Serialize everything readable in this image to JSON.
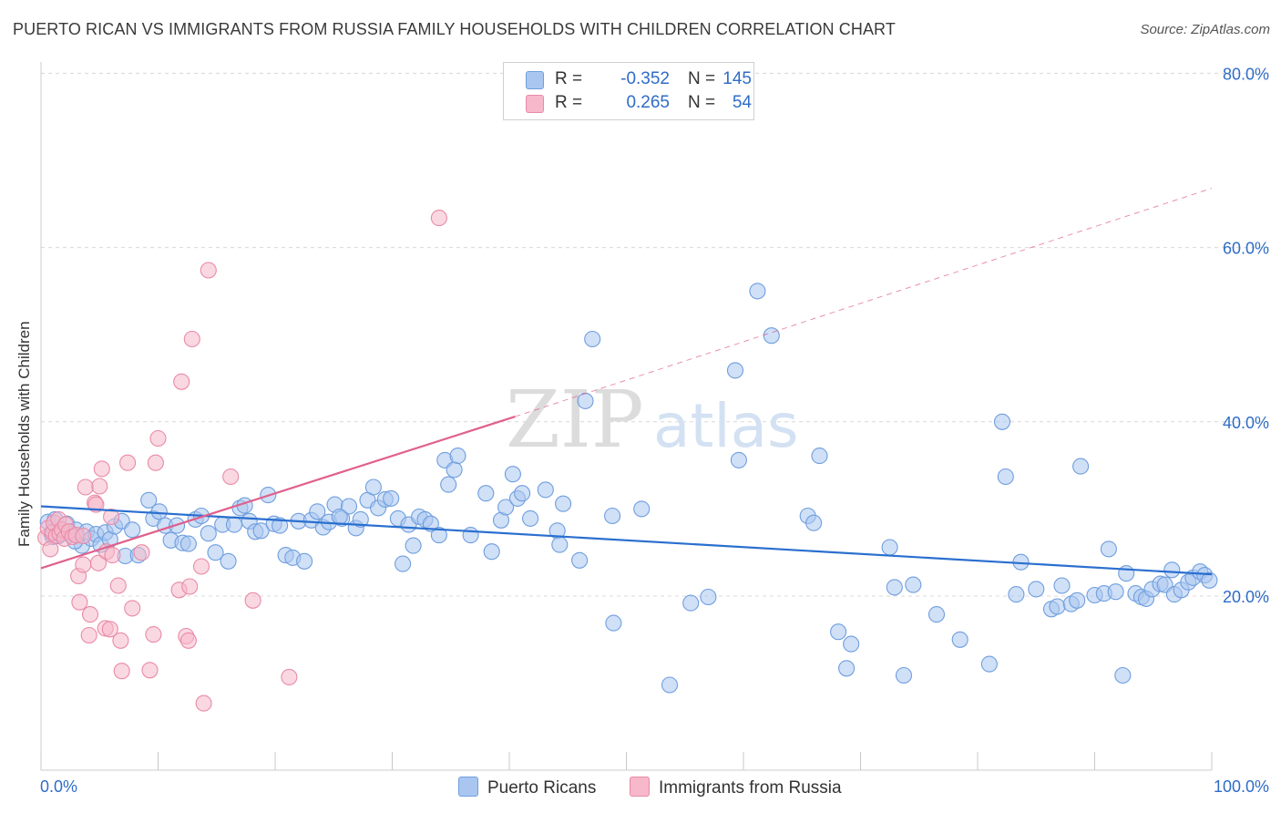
{
  "header": {
    "title": "PUERTO RICAN VS IMMIGRANTS FROM RUSSIA FAMILY HOUSEHOLDS WITH CHILDREN CORRELATION CHART",
    "source": "Source: ZipAtlas.com"
  },
  "legend": {
    "rows": [
      {
        "r_label": "R =",
        "r_value": "-0.352",
        "n_label": "N =",
        "n_value": "145"
      },
      {
        "r_label": "R =",
        "r_value": "0.265",
        "n_label": "N =",
        "n_value": "54"
      }
    ],
    "series": [
      "Puerto Ricans",
      "Immigrants from Russia"
    ]
  },
  "colors": {
    "blue_fill": "#a9c6f0",
    "blue_stroke": "#6f9ede",
    "blue_line": "#2a6fcf",
    "pink_fill": "#f6b8ca",
    "pink_stroke": "#e98aa7",
    "pink_line": "#e0608c",
    "axis_text": "#2f6cc7",
    "grid": "#d8d8d8"
  },
  "chart_data": {
    "type": "scatter",
    "title": "PUERTO RICAN VS IMMIGRANTS FROM RUSSIA FAMILY HOUSEHOLDS WITH CHILDREN CORRELATION CHART",
    "xlabel": "",
    "ylabel": "Family Households with Children",
    "xlim": [
      0,
      100
    ],
    "ylim": [
      0,
      82
    ],
    "x_tick_labels": [
      "0.0%",
      "100.0%"
    ],
    "y_ticks": [
      20,
      40,
      60,
      80
    ],
    "y_tick_labels": [
      "20.0%",
      "40.0%",
      "60.0%",
      "80.0%"
    ],
    "grid": true,
    "watermark": "ZIPatlas",
    "series": [
      {
        "name": "Puerto Ricans",
        "r": -0.352,
        "n": 145,
        "trend": {
          "x0": 0,
          "y0": 30.3,
          "x1": 100,
          "y1": 22.5,
          "style": "solid"
        },
        "points": [
          [
            0.6,
            28.5
          ],
          [
            0.9,
            27.2
          ],
          [
            1.2,
            28.8
          ],
          [
            1.5,
            26.9
          ],
          [
            1.8,
            27.5
          ],
          [
            2.2,
            28.3
          ],
          [
            2.6,
            27.1
          ],
          [
            3.0,
            27.6
          ],
          [
            3.5,
            25.8
          ],
          [
            3.9,
            27.4
          ],
          [
            4.3,
            26.6
          ],
          [
            4.7,
            27.1
          ],
          [
            5.1,
            25.9
          ],
          [
            5.5,
            27.3
          ],
          [
            5.9,
            26.5
          ],
          [
            6.3,
            28.0
          ],
          [
            6.9,
            28.6
          ],
          [
            7.2,
            24.6
          ],
          [
            7.8,
            27.6
          ],
          [
            8.3,
            24.7
          ],
          [
            9.2,
            31.0
          ],
          [
            9.6,
            28.9
          ],
          [
            10.1,
            29.7
          ],
          [
            10.6,
            28.1
          ],
          [
            11.1,
            26.4
          ],
          [
            11.6,
            28.1
          ],
          [
            12.1,
            26.1
          ],
          [
            12.6,
            26.0
          ],
          [
            13.2,
            28.8
          ],
          [
            13.7,
            29.2
          ],
          [
            14.3,
            27.2
          ],
          [
            14.9,
            25.0
          ],
          [
            15.5,
            28.2
          ],
          [
            16.0,
            24.0
          ],
          [
            16.5,
            28.2
          ],
          [
            17.0,
            30.1
          ],
          [
            17.4,
            30.4
          ],
          [
            17.8,
            28.6
          ],
          [
            18.3,
            27.4
          ],
          [
            18.8,
            27.5
          ],
          [
            19.4,
            31.6
          ],
          [
            19.9,
            28.3
          ],
          [
            20.4,
            28.1
          ],
          [
            20.9,
            24.7
          ],
          [
            21.5,
            24.4
          ],
          [
            22.0,
            28.6
          ],
          [
            22.5,
            24.0
          ],
          [
            23.1,
            28.7
          ],
          [
            23.6,
            29.7
          ],
          [
            24.1,
            27.9
          ],
          [
            24.6,
            28.5
          ],
          [
            25.1,
            30.5
          ],
          [
            25.7,
            28.9
          ],
          [
            26.3,
            30.3
          ],
          [
            26.9,
            27.8
          ],
          [
            27.3,
            28.8
          ],
          [
            27.9,
            31.0
          ],
          [
            28.4,
            32.5
          ],
          [
            28.8,
            30.1
          ],
          [
            29.4,
            31.1
          ],
          [
            29.9,
            31.2
          ],
          [
            30.5,
            28.9
          ],
          [
            30.9,
            23.7
          ],
          [
            31.4,
            28.2
          ],
          [
            31.8,
            25.8
          ],
          [
            32.3,
            29.1
          ],
          [
            32.8,
            28.8
          ],
          [
            33.3,
            28.3
          ],
          [
            34.0,
            27.0
          ],
          [
            34.5,
            35.6
          ],
          [
            34.8,
            32.8
          ],
          [
            35.3,
            34.5
          ],
          [
            35.6,
            36.1
          ],
          [
            36.7,
            27.0
          ],
          [
            38.0,
            31.8
          ],
          [
            38.5,
            25.1
          ],
          [
            39.3,
            28.7
          ],
          [
            39.7,
            30.2
          ],
          [
            40.3,
            34.0
          ],
          [
            40.7,
            31.2
          ],
          [
            41.1,
            31.8
          ],
          [
            41.8,
            28.9
          ],
          [
            43.1,
            32.2
          ],
          [
            44.1,
            27.5
          ],
          [
            44.3,
            25.9
          ],
          [
            44.6,
            30.6
          ],
          [
            46.0,
            24.1
          ],
          [
            46.5,
            42.4
          ],
          [
            47.1,
            49.5
          ],
          [
            48.8,
            29.2
          ],
          [
            48.9,
            16.9
          ],
          [
            51.3,
            30.0
          ],
          [
            53.7,
            9.8
          ],
          [
            55.5,
            19.2
          ],
          [
            57.0,
            19.9
          ],
          [
            59.3,
            45.9
          ],
          [
            59.6,
            35.6
          ],
          [
            61.2,
            55.0
          ],
          [
            62.4,
            49.9
          ],
          [
            65.5,
            29.2
          ],
          [
            66.0,
            28.4
          ],
          [
            66.5,
            36.1
          ],
          [
            68.1,
            15.9
          ],
          [
            68.8,
            11.7
          ],
          [
            69.2,
            14.5
          ],
          [
            72.5,
            25.6
          ],
          [
            72.9,
            21.0
          ],
          [
            73.7,
            10.9
          ],
          [
            74.5,
            21.3
          ],
          [
            76.5,
            17.9
          ],
          [
            78.5,
            15.0
          ],
          [
            81.0,
            12.2
          ],
          [
            82.1,
            40.0
          ],
          [
            82.4,
            33.7
          ],
          [
            83.3,
            20.2
          ],
          [
            83.7,
            23.9
          ],
          [
            85.0,
            20.8
          ],
          [
            86.3,
            18.5
          ],
          [
            86.8,
            18.8
          ],
          [
            87.2,
            21.2
          ],
          [
            88.0,
            19.1
          ],
          [
            88.5,
            19.5
          ],
          [
            88.8,
            34.9
          ],
          [
            90.0,
            20.1
          ],
          [
            90.8,
            20.3
          ],
          [
            91.2,
            25.4
          ],
          [
            91.8,
            20.5
          ],
          [
            92.4,
            10.9
          ],
          [
            92.7,
            22.6
          ],
          [
            93.5,
            20.3
          ],
          [
            94.0,
            19.9
          ],
          [
            94.4,
            19.7
          ],
          [
            94.9,
            20.8
          ],
          [
            95.6,
            21.4
          ],
          [
            96.0,
            21.3
          ],
          [
            96.6,
            23.0
          ],
          [
            96.8,
            20.2
          ],
          [
            97.4,
            20.7
          ],
          [
            98.0,
            21.6
          ],
          [
            98.4,
            22.1
          ],
          [
            99.0,
            22.8
          ],
          [
            99.4,
            22.4
          ],
          [
            99.8,
            21.8
          ],
          [
            1.0,
            26.8
          ],
          [
            2.9,
            26.3
          ],
          [
            25.5,
            29.1
          ]
        ]
      },
      {
        "name": "Immigrants from Russia",
        "r": 0.265,
        "n": 54,
        "trend": {
          "x0": 0,
          "y0": 23.2,
          "x1": 40.5,
          "y1": 40.6,
          "x2": 100,
          "y2": 66.8,
          "style": "solid-then-dashed"
        },
        "points": [
          [
            0.4,
            26.7
          ],
          [
            0.6,
            27.8
          ],
          [
            0.8,
            25.4
          ],
          [
            1.0,
            27.3
          ],
          [
            1.1,
            28.4
          ],
          [
            1.3,
            26.9
          ],
          [
            1.5,
            28.8
          ],
          [
            1.6,
            27.2
          ],
          [
            1.8,
            27.6
          ],
          [
            2.0,
            26.6
          ],
          [
            2.1,
            28.2
          ],
          [
            2.4,
            27.4
          ],
          [
            2.7,
            26.8
          ],
          [
            3.0,
            27.0
          ],
          [
            3.2,
            22.3
          ],
          [
            3.3,
            19.3
          ],
          [
            3.6,
            23.6
          ],
          [
            3.6,
            26.9
          ],
          [
            3.8,
            32.5
          ],
          [
            4.1,
            15.5
          ],
          [
            4.2,
            17.9
          ],
          [
            4.6,
            30.7
          ],
          [
            4.7,
            30.5
          ],
          [
            4.9,
            23.8
          ],
          [
            5.0,
            32.6
          ],
          [
            5.2,
            34.6
          ],
          [
            5.5,
            16.3
          ],
          [
            5.6,
            25.1
          ],
          [
            5.9,
            16.2
          ],
          [
            6.0,
            29.1
          ],
          [
            6.1,
            24.7
          ],
          [
            6.6,
            21.2
          ],
          [
            6.8,
            14.9
          ],
          [
            6.9,
            11.4
          ],
          [
            7.4,
            35.3
          ],
          [
            7.8,
            18.6
          ],
          [
            8.6,
            25.0
          ],
          [
            9.3,
            11.5
          ],
          [
            9.6,
            15.6
          ],
          [
            9.8,
            35.3
          ],
          [
            10.0,
            38.1
          ],
          [
            11.8,
            20.7
          ],
          [
            12.0,
            44.6
          ],
          [
            12.4,
            15.4
          ],
          [
            12.6,
            14.9
          ],
          [
            12.7,
            21.1
          ],
          [
            12.9,
            49.5
          ],
          [
            13.7,
            23.4
          ],
          [
            13.9,
            7.7
          ],
          [
            14.3,
            57.4
          ],
          [
            16.2,
            33.7
          ],
          [
            18.1,
            19.5
          ],
          [
            21.2,
            10.7
          ],
          [
            34.0,
            63.4
          ]
        ]
      }
    ]
  }
}
